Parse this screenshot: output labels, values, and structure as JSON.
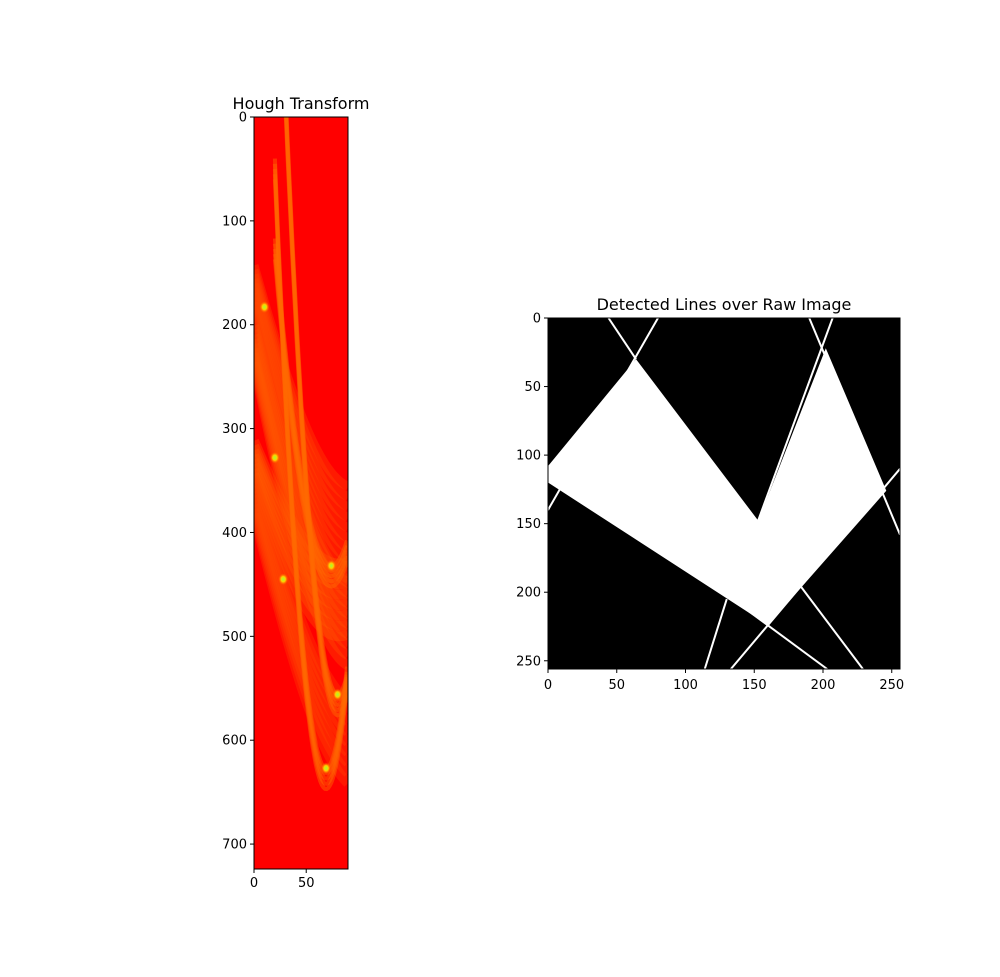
{
  "chart_data": [
    {
      "type": "heatmap",
      "title": "Hough Transform",
      "colormap": "red-orange-yellow-green",
      "xlim": [
        0,
        90
      ],
      "ylim": [
        724,
        0
      ],
      "xticks": [
        0,
        50
      ],
      "yticks": [
        0,
        100,
        200,
        300,
        400,
        500,
        600,
        700
      ],
      "peaks": [
        {
          "theta": 74,
          "rho": 432
        },
        {
          "theta": 80,
          "rho": 556
        },
        {
          "theta": 69,
          "rho": 627
        },
        {
          "theta": 10,
          "rho": 183
        },
        {
          "theta": 20,
          "rho": 328
        },
        {
          "theta": 28,
          "rho": 445
        }
      ]
    },
    {
      "type": "image",
      "title": "Detected Lines over Raw Image",
      "xlim": [
        0,
        256
      ],
      "ylim": [
        256,
        0
      ],
      "xticks": [
        0,
        50,
        100,
        150,
        200,
        250
      ],
      "yticks": [
        0,
        50,
        100,
        150,
        200,
        250
      ],
      "shape_vertices": [
        [
          0,
          108
        ],
        [
          64,
          30
        ],
        [
          153,
          148
        ],
        [
          202,
          22
        ],
        [
          246,
          126
        ],
        [
          160,
          224
        ],
        [
          0,
          120
        ]
      ],
      "lines": [
        {
          "x1": 44,
          "y1": 0,
          "x2": 64,
          "y2": 30
        },
        {
          "x1": 80,
          "y1": 0,
          "x2": 0,
          "y2": 140
        },
        {
          "x1": 0,
          "y1": 108,
          "x2": 15,
          "y2": 117
        },
        {
          "x1": 190,
          "y1": 0,
          "x2": 256,
          "y2": 158
        },
        {
          "x1": 207,
          "y1": 0,
          "x2": 152,
          "y2": 150
        },
        {
          "x1": 256,
          "y1": 110,
          "x2": 133,
          "y2": 256
        },
        {
          "x1": 15,
          "y1": 117,
          "x2": 203,
          "y2": 256
        },
        {
          "x1": 130,
          "y1": 205,
          "x2": 114,
          "y2": 256
        },
        {
          "x1": 184,
          "y1": 196,
          "x2": 229,
          "y2": 256
        }
      ]
    }
  ]
}
